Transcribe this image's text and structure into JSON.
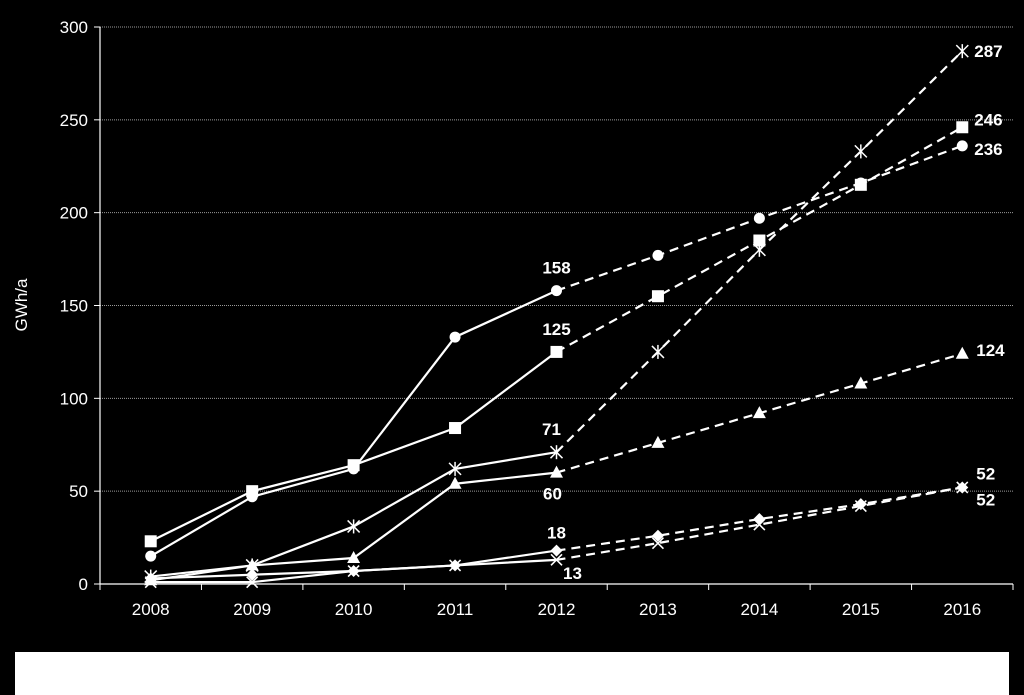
{
  "chart_data": {
    "type": "line",
    "title": "",
    "xlabel": "",
    "ylabel": "GWh/a",
    "categories": [
      "2008",
      "2009",
      "2010",
      "2011",
      "2012",
      "2013",
      "2014",
      "2015",
      "2016"
    ],
    "ylim": [
      0,
      300
    ],
    "yticks": [
      0,
      50,
      100,
      150,
      200,
      250,
      300
    ],
    "grid": true,
    "legend": "none",
    "actual_until": "2012",
    "style": {
      "background": "#000000",
      "line_color": "#ffffff",
      "actual": "solid",
      "forecast": "dashed"
    },
    "series": [
      {
        "marker": "circle",
        "values": [
          15,
          47,
          62,
          133,
          158,
          177,
          197,
          216,
          236
        ],
        "labels": [
          {
            "index": 4,
            "text": "158"
          },
          {
            "index": 8,
            "text": "236"
          }
        ]
      },
      {
        "marker": "square",
        "values": [
          23,
          50,
          64,
          84,
          125,
          155,
          185,
          215,
          246
        ],
        "labels": [
          {
            "index": 4,
            "text": "125"
          },
          {
            "index": 8,
            "text": "246"
          }
        ]
      },
      {
        "marker": "star",
        "values": [
          4,
          10,
          31,
          62,
          71,
          125,
          180,
          233,
          287
        ],
        "labels": [
          {
            "index": 4,
            "text": "71"
          },
          {
            "index": 8,
            "text": "287"
          }
        ]
      },
      {
        "marker": "triangle",
        "values": [
          2,
          10,
          14,
          54,
          60,
          76,
          92,
          108,
          124
        ],
        "labels": [
          {
            "index": 4,
            "text": "60"
          },
          {
            "index": 8,
            "text": "124"
          }
        ]
      },
      {
        "marker": "diamond",
        "values": [
          3,
          5,
          7,
          10,
          18,
          26,
          35,
          43,
          52
        ],
        "labels": [
          {
            "index": 4,
            "text": "18"
          },
          {
            "index": 8,
            "text": "52"
          }
        ]
      },
      {
        "marker": "x",
        "values": [
          1,
          1,
          7,
          10,
          13,
          22,
          32,
          42,
          52
        ],
        "labels": [
          {
            "index": 4,
            "text": "13"
          },
          {
            "index": 8,
            "text": "52"
          }
        ]
      }
    ]
  }
}
